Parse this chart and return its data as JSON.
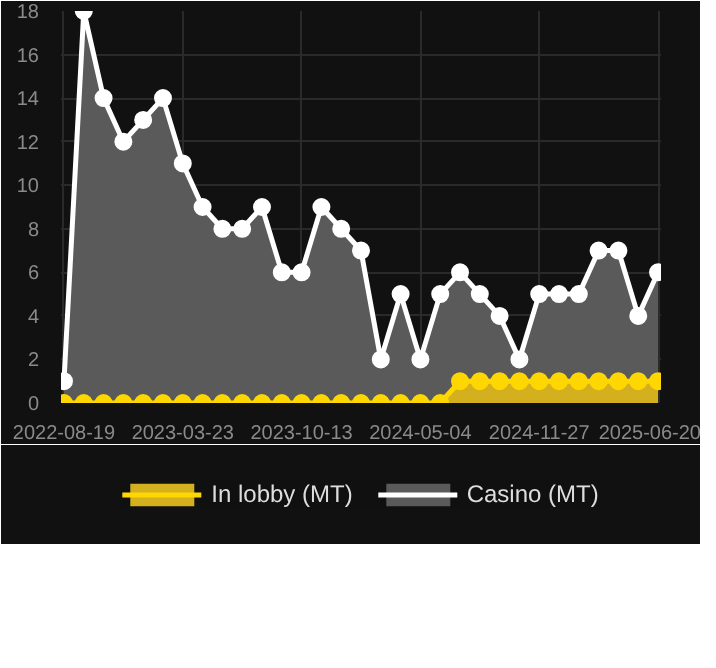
{
  "chart_data": {
    "type": "area",
    "categories": [
      "2022-08-19",
      null,
      null,
      null,
      null,
      null,
      "2023-03-23",
      null,
      null,
      null,
      null,
      null,
      "2023-10-13",
      null,
      null,
      null,
      null,
      null,
      "2024-05-04",
      null,
      null,
      null,
      null,
      null,
      "2024-11-27",
      null,
      null,
      null,
      null,
      null,
      "2025-06-20"
    ],
    "series": [
      {
        "name": "In lobby (MT)",
        "color": "#ffd700",
        "values": [
          0,
          0,
          0,
          0,
          0,
          0,
          0,
          0,
          0,
          0,
          0,
          0,
          0,
          0,
          0,
          0,
          0,
          0,
          0,
          0,
          1,
          1,
          1,
          1,
          1,
          1,
          1,
          1,
          1,
          1,
          1
        ]
      },
      {
        "name": "Casino (MT)",
        "color": "#ffffff",
        "values": [
          1,
          18,
          14,
          12,
          13,
          14,
          11,
          9,
          8,
          8,
          9,
          6,
          6,
          9,
          8,
          7,
          2,
          5,
          2,
          5,
          6,
          5,
          4,
          2,
          5,
          5,
          5,
          7,
          7,
          4,
          6
        ]
      }
    ],
    "ylim": [
      0,
      18
    ],
    "yticks": [
      0,
      2,
      4,
      6,
      8,
      10,
      12,
      14,
      16,
      18
    ],
    "grid": true,
    "legend": "bottom",
    "marker": "circle"
  }
}
